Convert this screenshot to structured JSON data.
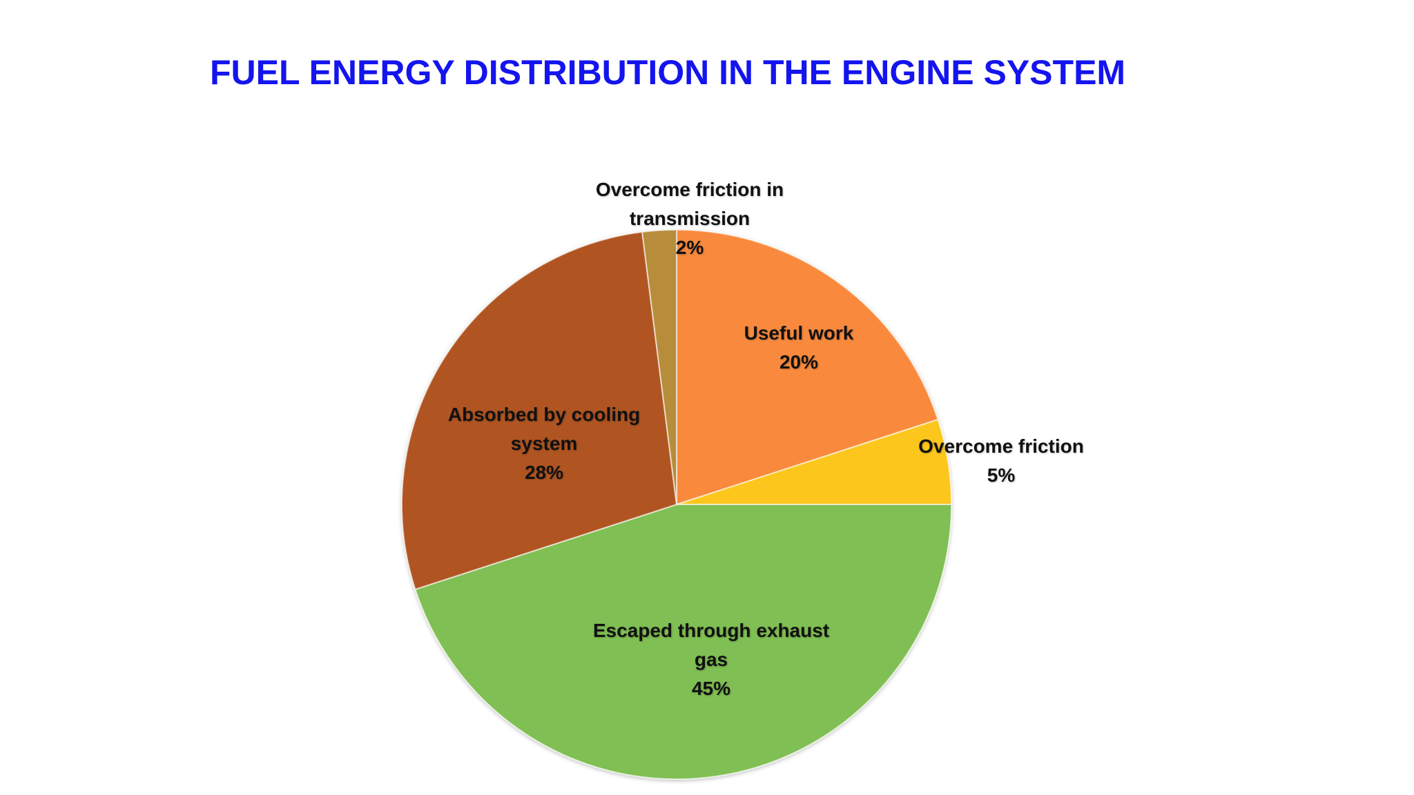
{
  "chart_data": {
    "type": "pie",
    "title": "FUEL ENERGY DISTRIBUTION IN THE ENGINE SYSTEM",
    "categories": [
      "Useful work",
      "Overcome friction",
      "Escaped through exhaust gas",
      "Absorbed by cooling system",
      "Overcome friction in transmission"
    ],
    "values": [
      20,
      5,
      45,
      28,
      2
    ],
    "value_labels": [
      "20%",
      "5%",
      "45%",
      "28%",
      "2%"
    ],
    "colors": [
      "#f98a3c",
      "#fcc61e",
      "#80bf52",
      "#b05522",
      "#b78d3a"
    ]
  }
}
